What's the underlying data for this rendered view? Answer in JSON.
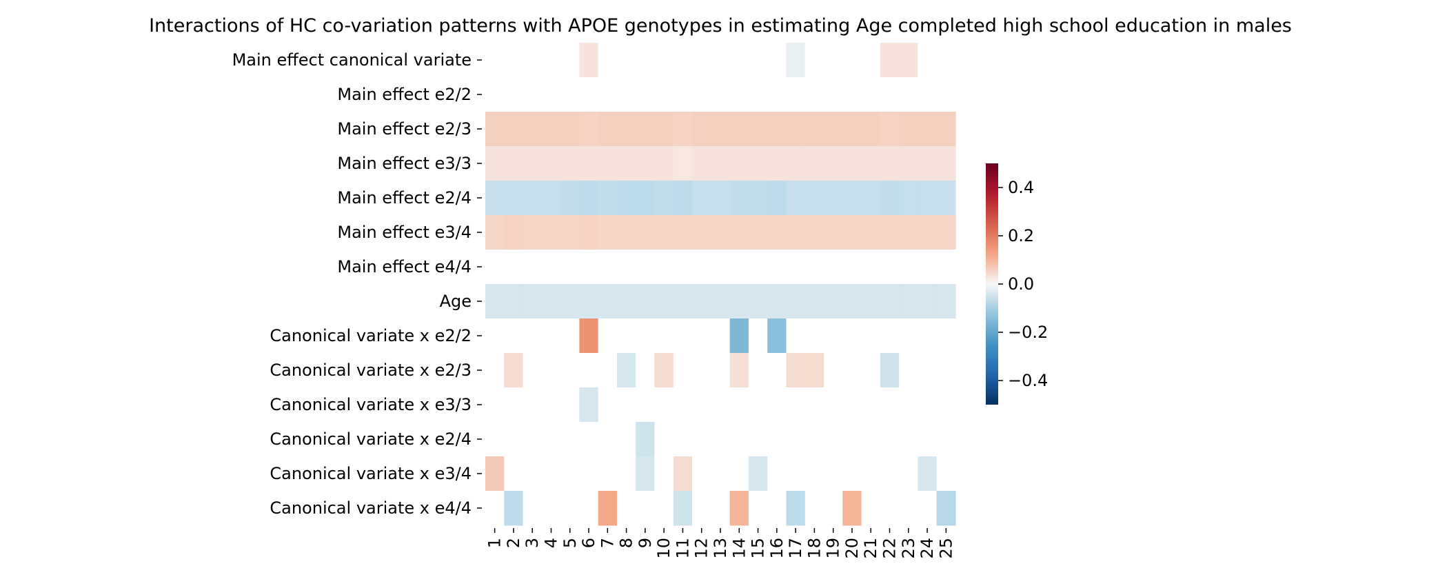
{
  "chart_data": {
    "type": "heatmap",
    "title": "Interactions of HC co-variation patterns with APOE genotypes in estimating Age completed high school education in males",
    "x_labels": [
      "1",
      "2",
      "3",
      "4",
      "5",
      "6",
      "7",
      "8",
      "9",
      "10",
      "11",
      "12",
      "13",
      "14",
      "15",
      "16",
      "17",
      "18",
      "19",
      "20",
      "21",
      "22",
      "23",
      "24",
      "25"
    ],
    "y_labels": [
      "Main effect canonical variate",
      "Main effect e2/2",
      "Main effect e2/3",
      "Main effect e3/3",
      "Main effect e2/4",
      "Main effect e3/4",
      "Main effect e4/4",
      "Age",
      "Canonical variate x e2/2",
      "Canonical variate x e2/3",
      "Canonical variate x e3/3",
      "Canonical variate x e2/4",
      "Canonical variate x e3/4",
      "Canonical variate x e4/4"
    ],
    "values": [
      [
        0,
        0,
        0,
        0,
        0,
        0.03,
        0,
        0,
        0,
        0,
        0,
        0,
        0,
        0,
        0,
        0,
        -0.02,
        0,
        0,
        0,
        0,
        0.03,
        0.03,
        0,
        0
      ],
      [
        0,
        0,
        0,
        0,
        0,
        0,
        0,
        0,
        0,
        0,
        0,
        0,
        0,
        0,
        0,
        0,
        0,
        0,
        0,
        0,
        0,
        0,
        0,
        0,
        0
      ],
      [
        0.06,
        0.06,
        0.06,
        0.06,
        0.06,
        0.055,
        0.06,
        0.06,
        0.06,
        0.06,
        0.055,
        0.06,
        0.06,
        0.06,
        0.06,
        0.06,
        0.06,
        0.06,
        0.06,
        0.06,
        0.06,
        0.055,
        0.06,
        0.06,
        0.06
      ],
      [
        0.03,
        0.03,
        0.03,
        0.03,
        0.03,
        0.03,
        0.03,
        0.03,
        0.03,
        0.03,
        0.025,
        0.03,
        0.03,
        0.03,
        0.03,
        0.03,
        0.03,
        0.03,
        0.03,
        0.03,
        0.03,
        0.03,
        0.03,
        0.03,
        0.03
      ],
      [
        -0.06,
        -0.06,
        -0.06,
        -0.06,
        -0.065,
        -0.07,
        -0.065,
        -0.07,
        -0.07,
        -0.065,
        -0.07,
        -0.06,
        -0.06,
        -0.065,
        -0.065,
        -0.07,
        -0.06,
        -0.06,
        -0.06,
        -0.06,
        -0.06,
        -0.065,
        -0.06,
        -0.06,
        -0.06
      ],
      [
        0.05,
        0.055,
        0.05,
        0.05,
        0.05,
        0.055,
        0.05,
        0.05,
        0.05,
        0.05,
        0.05,
        0.05,
        0.05,
        0.05,
        0.05,
        0.05,
        0.05,
        0.05,
        0.05,
        0.05,
        0.05,
        0.05,
        0.05,
        0.05,
        0.05
      ],
      [
        0,
        0,
        0,
        0,
        0,
        0,
        0,
        0,
        0,
        0,
        0,
        0,
        0,
        0,
        0,
        0,
        0,
        0,
        0,
        0,
        0,
        0,
        0,
        0,
        0
      ],
      [
        -0.04,
        -0.04,
        -0.04,
        -0.04,
        -0.04,
        -0.04,
        -0.04,
        -0.04,
        -0.04,
        -0.04,
        -0.04,
        -0.04,
        -0.04,
        -0.04,
        -0.04,
        -0.04,
        -0.04,
        -0.04,
        -0.04,
        -0.04,
        -0.04,
        -0.04,
        -0.04,
        -0.04,
        -0.04
      ],
      [
        0,
        0,
        0,
        0,
        0,
        0.16,
        0,
        0,
        0,
        0,
        0,
        0,
        0,
        -0.16,
        0,
        -0.14,
        0,
        0,
        0,
        0,
        0,
        0,
        0,
        0,
        0
      ],
      [
        0,
        0.04,
        0,
        0,
        0,
        0,
        0,
        -0.04,
        0,
        0.04,
        0,
        0,
        0,
        0.035,
        0,
        0,
        0.04,
        0.04,
        0,
        0,
        0,
        -0.05,
        0,
        0,
        0
      ],
      [
        0,
        0,
        0,
        0,
        0,
        -0.04,
        0,
        0,
        0,
        0,
        0,
        0,
        0,
        0,
        0,
        0,
        0,
        0,
        0,
        0,
        0,
        0,
        0,
        0,
        0
      ],
      [
        0,
        0,
        0,
        0,
        0,
        0,
        0,
        0,
        -0.05,
        0,
        0,
        0,
        0,
        0,
        0,
        0,
        0,
        0,
        0,
        0,
        0,
        0,
        0,
        0,
        0
      ],
      [
        0.07,
        0,
        0,
        0,
        0,
        0,
        0,
        0,
        -0.04,
        0,
        0.04,
        0,
        0,
        0,
        -0.04,
        0,
        0,
        0,
        0,
        0,
        0,
        0,
        0,
        -0.04,
        0
      ],
      [
        0,
        -0.07,
        0,
        0,
        0,
        0,
        0.12,
        0,
        0,
        0,
        -0.05,
        0,
        0,
        0.1,
        0,
        0,
        -0.07,
        0,
        0,
        0.1,
        0,
        0,
        0,
        0,
        -0.08
      ]
    ],
    "vmin": -0.5,
    "vmax": 0.5,
    "colormap": "RdBu_r",
    "colorbar_ticks": [
      "0.4",
      "0.2",
      "0.0",
      "−0.2",
      "−0.4"
    ],
    "colorbar_tick_values": [
      0.4,
      0.2,
      0.0,
      -0.2,
      -0.4
    ]
  }
}
